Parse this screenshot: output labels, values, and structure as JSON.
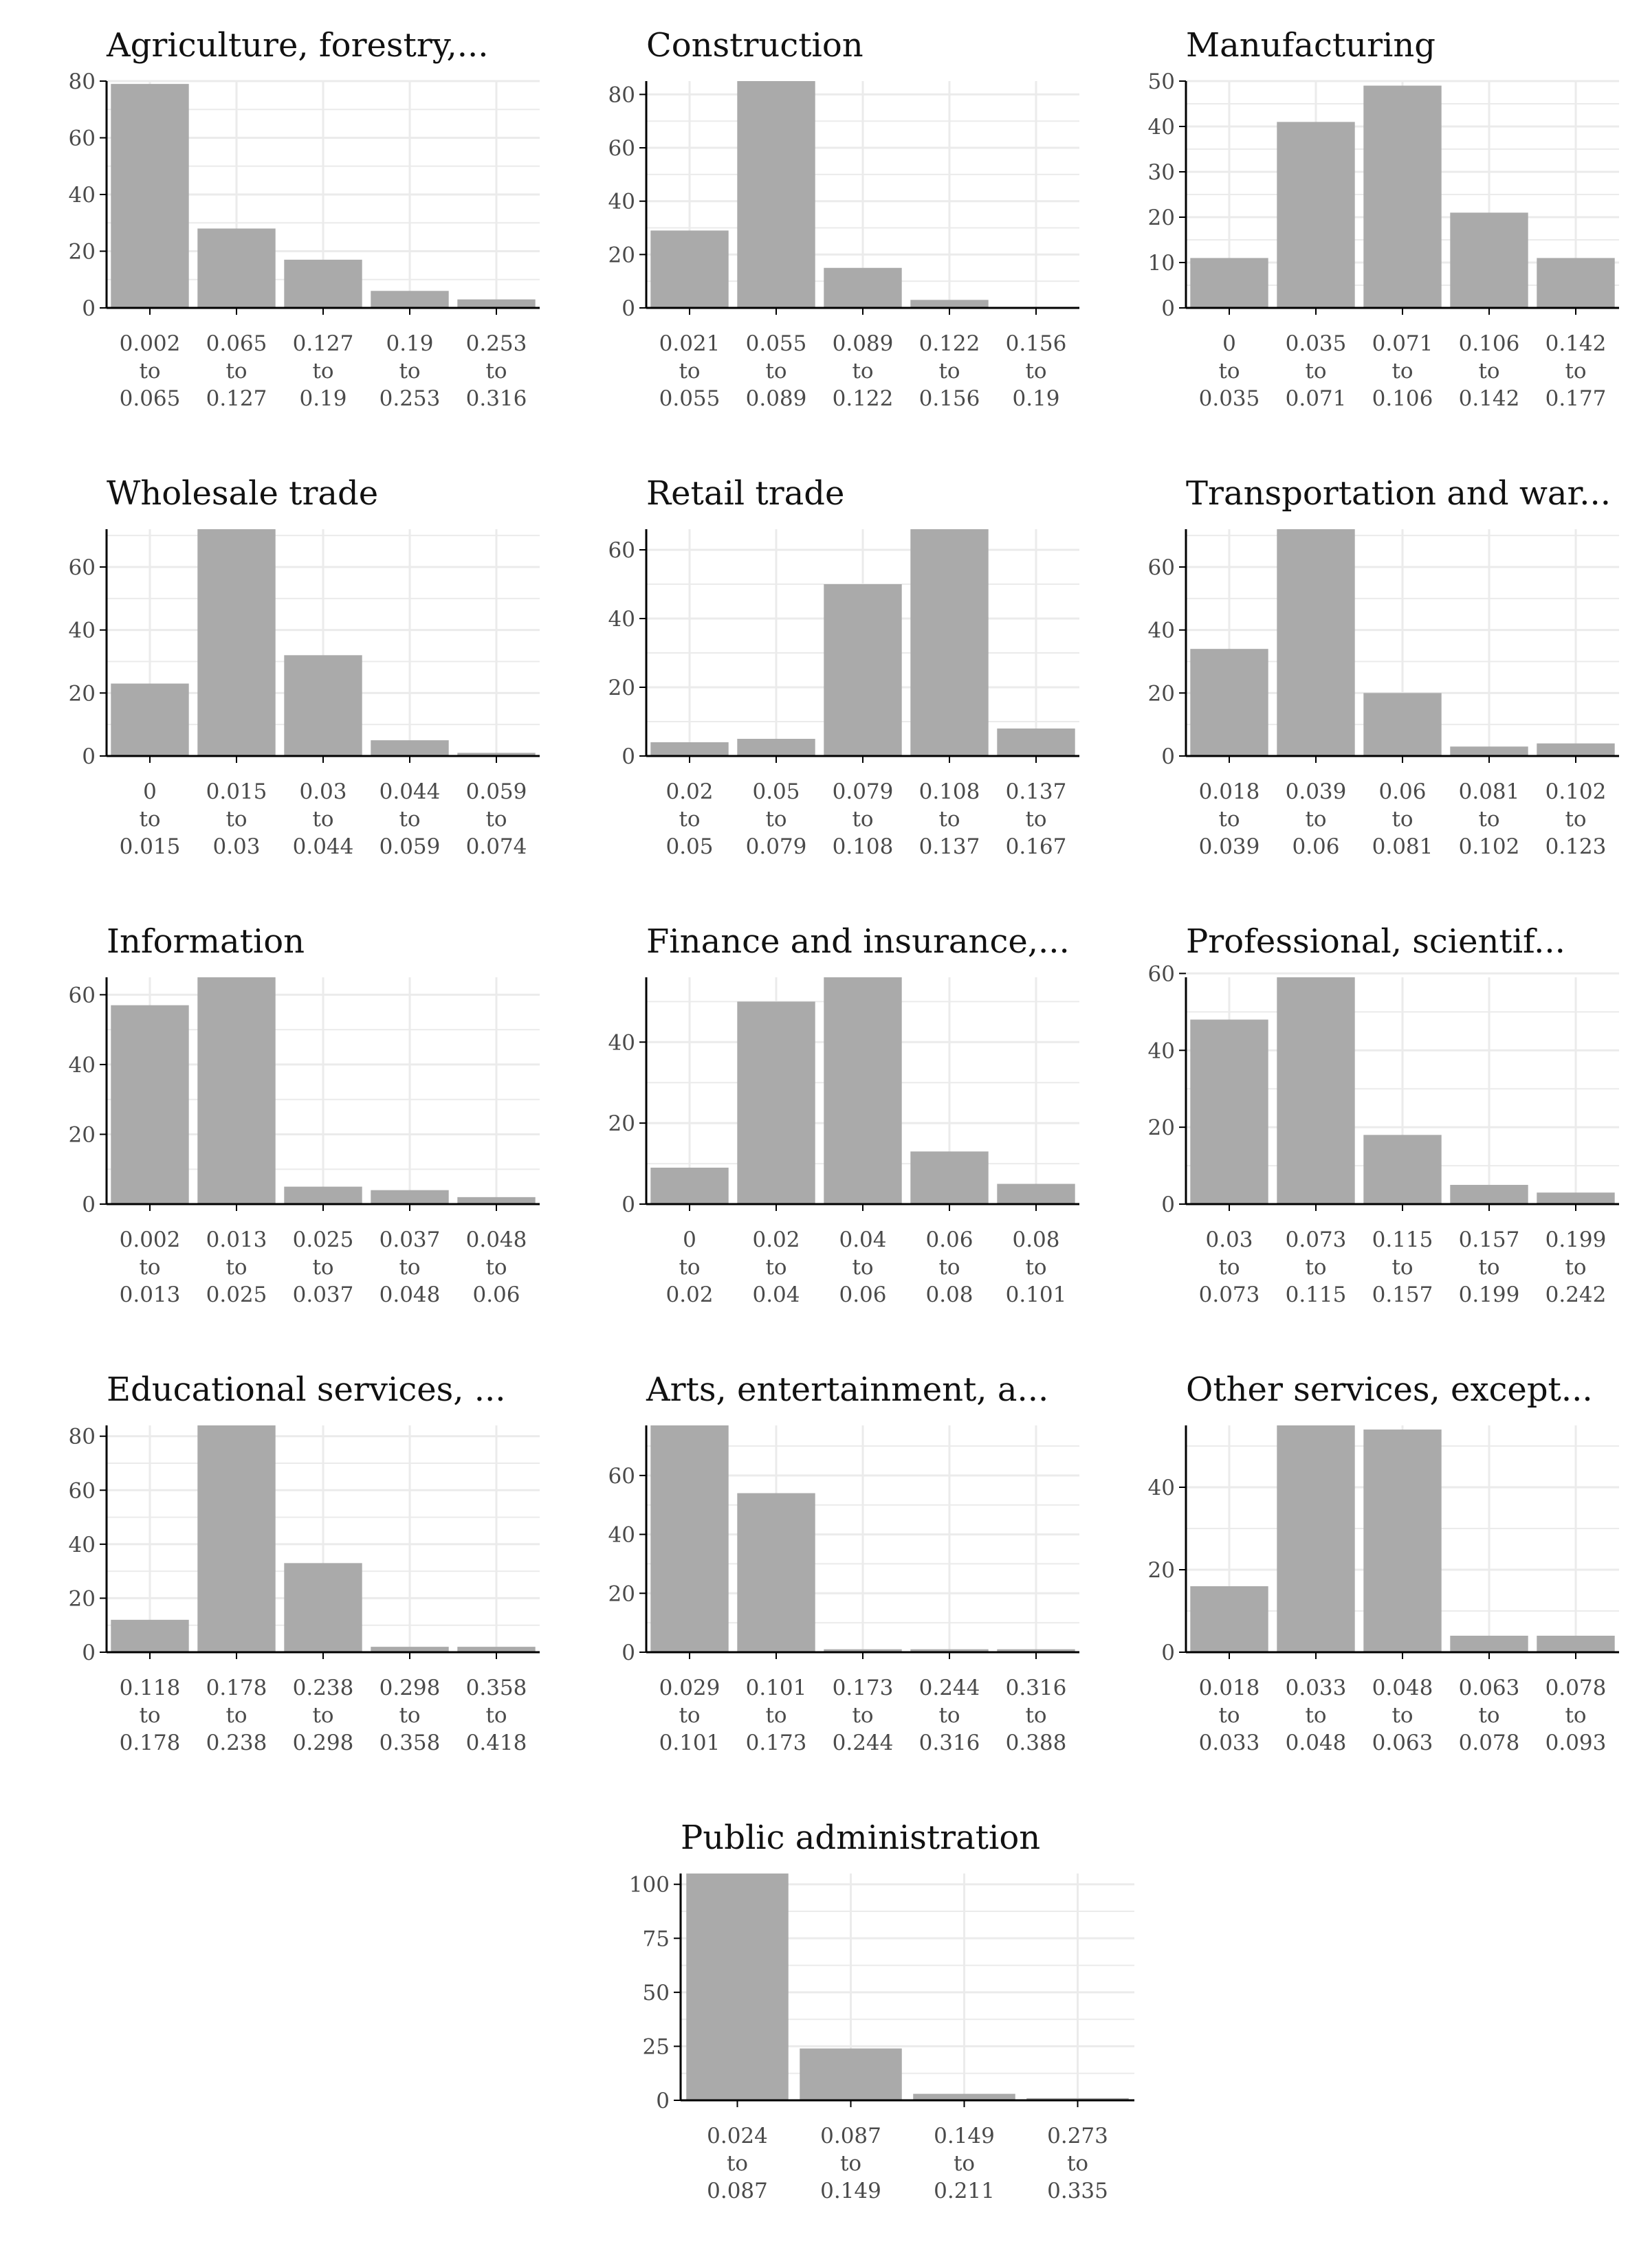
{
  "chart_data": [
    {
      "type": "bar",
      "title": "Agriculture, forestry,...",
      "categories": [
        "0.002 to 0.065",
        "0.065 to 0.127",
        "0.127 to 0.19",
        "0.19 to 0.253",
        "0.253 to 0.316"
      ],
      "values": [
        79,
        28,
        17,
        6,
        3
      ],
      "ylim": [
        0,
        80
      ],
      "yticks": [
        0,
        20,
        40,
        60,
        80
      ]
    },
    {
      "type": "bar",
      "title": "Construction",
      "categories": [
        "0.021 to 0.055",
        "0.055 to 0.089",
        "0.089 to 0.122",
        "0.122 to 0.156",
        "0.156 to 0.19"
      ],
      "values": [
        29,
        85,
        15,
        3,
        0
      ],
      "ylim": [
        0,
        85
      ],
      "yticks": [
        0,
        20,
        40,
        60,
        80
      ]
    },
    {
      "type": "bar",
      "title": "Manufacturing",
      "categories": [
        "0 to 0.035",
        "0.035 to 0.071",
        "0.071 to 0.106",
        "0.106 to 0.142",
        "0.142 to 0.177"
      ],
      "values": [
        11,
        41,
        49,
        21,
        11
      ],
      "ylim": [
        0,
        50
      ],
      "yticks": [
        0,
        10,
        20,
        30,
        40,
        50
      ]
    },
    {
      "type": "bar",
      "title": "Wholesale trade",
      "categories": [
        "0 to 0.015",
        "0.015 to 0.03",
        "0.03 to 0.044",
        "0.044 to 0.059",
        "0.059 to 0.074"
      ],
      "values": [
        23,
        72,
        32,
        5,
        1
      ],
      "ylim": [
        0,
        72
      ],
      "yticks": [
        0,
        20,
        40,
        60
      ]
    },
    {
      "type": "bar",
      "title": "Retail trade",
      "categories": [
        "0.02 to 0.05",
        "0.05 to 0.079",
        "0.079 to 0.108",
        "0.108 to 0.137",
        "0.137 to 0.167"
      ],
      "values": [
        4,
        5,
        50,
        66,
        8
      ],
      "ylim": [
        0,
        66
      ],
      "yticks": [
        0,
        20,
        40,
        60
      ]
    },
    {
      "type": "bar",
      "title": "Transportation and war...",
      "categories": [
        "0.018 to 0.039",
        "0.039 to 0.06",
        "0.06 to 0.081",
        "0.081 to 0.102",
        "0.102 to 0.123"
      ],
      "values": [
        34,
        72,
        20,
        3,
        4
      ],
      "ylim": [
        0,
        72
      ],
      "yticks": [
        0,
        20,
        40,
        60
      ]
    },
    {
      "type": "bar",
      "title": "Information",
      "categories": [
        "0.002 to 0.013",
        "0.013 to 0.025",
        "0.025 to 0.037",
        "0.037 to 0.048",
        "0.048 to 0.06"
      ],
      "values": [
        57,
        65,
        5,
        4,
        2
      ],
      "ylim": [
        0,
        65
      ],
      "yticks": [
        0,
        20,
        40,
        60
      ]
    },
    {
      "type": "bar",
      "title": "Finance and insurance,...",
      "categories": [
        "0 to 0.02",
        "0.02 to 0.04",
        "0.04 to 0.06",
        "0.06 to 0.08",
        "0.08 to 0.101"
      ],
      "values": [
        9,
        50,
        56,
        13,
        5
      ],
      "ylim": [
        0,
        56
      ],
      "yticks": [
        0,
        20,
        40
      ]
    },
    {
      "type": "bar",
      "title": "Professional, scientif...",
      "categories": [
        "0.03 to 0.073",
        "0.073 to 0.115",
        "0.115 to 0.157",
        "0.157 to 0.199",
        "0.199 to 0.242"
      ],
      "values": [
        48,
        59,
        18,
        5,
        3
      ],
      "ylim": [
        0,
        59
      ],
      "yticks": [
        0,
        20,
        40,
        60
      ]
    },
    {
      "type": "bar",
      "title": "Educational services, ...",
      "categories": [
        "0.118 to 0.178",
        "0.178 to 0.238",
        "0.238 to 0.298",
        "0.298 to 0.358",
        "0.358 to 0.418"
      ],
      "values": [
        12,
        84,
        33,
        2,
        2
      ],
      "ylim": [
        0,
        84
      ],
      "yticks": [
        0,
        20,
        40,
        60,
        80
      ]
    },
    {
      "type": "bar",
      "title": "Arts, entertainment, a...",
      "categories": [
        "0.029 to 0.101",
        "0.101 to 0.173",
        "0.173 to 0.244",
        "0.244 to 0.316",
        "0.316 to 0.388"
      ],
      "values": [
        77,
        54,
        1,
        1,
        1
      ],
      "ylim": [
        0,
        77
      ],
      "yticks": [
        0,
        20,
        40,
        60
      ]
    },
    {
      "type": "bar",
      "title": "Other services, except...",
      "categories": [
        "0.018 to 0.033",
        "0.033 to 0.048",
        "0.048 to 0.063",
        "0.063 to 0.078",
        "0.078 to 0.093"
      ],
      "values": [
        16,
        55,
        54,
        4,
        4
      ],
      "ylim": [
        0,
        55
      ],
      "yticks": [
        0,
        20,
        40
      ]
    },
    {
      "type": "bar",
      "title": "Public administration",
      "categories": [
        "0.024 to 0.087",
        "0.087 to 0.149",
        "0.149 to 0.211",
        "0.273 to 0.335"
      ],
      "values": [
        105,
        24,
        3,
        1
      ],
      "ylim": [
        0,
        105
      ],
      "yticks": [
        0,
        25,
        50,
        75,
        100
      ]
    }
  ],
  "colors": {
    "bar": "#aaaaaa",
    "grid": "#ebebeb",
    "axis": "#000000"
  },
  "grid": true
}
